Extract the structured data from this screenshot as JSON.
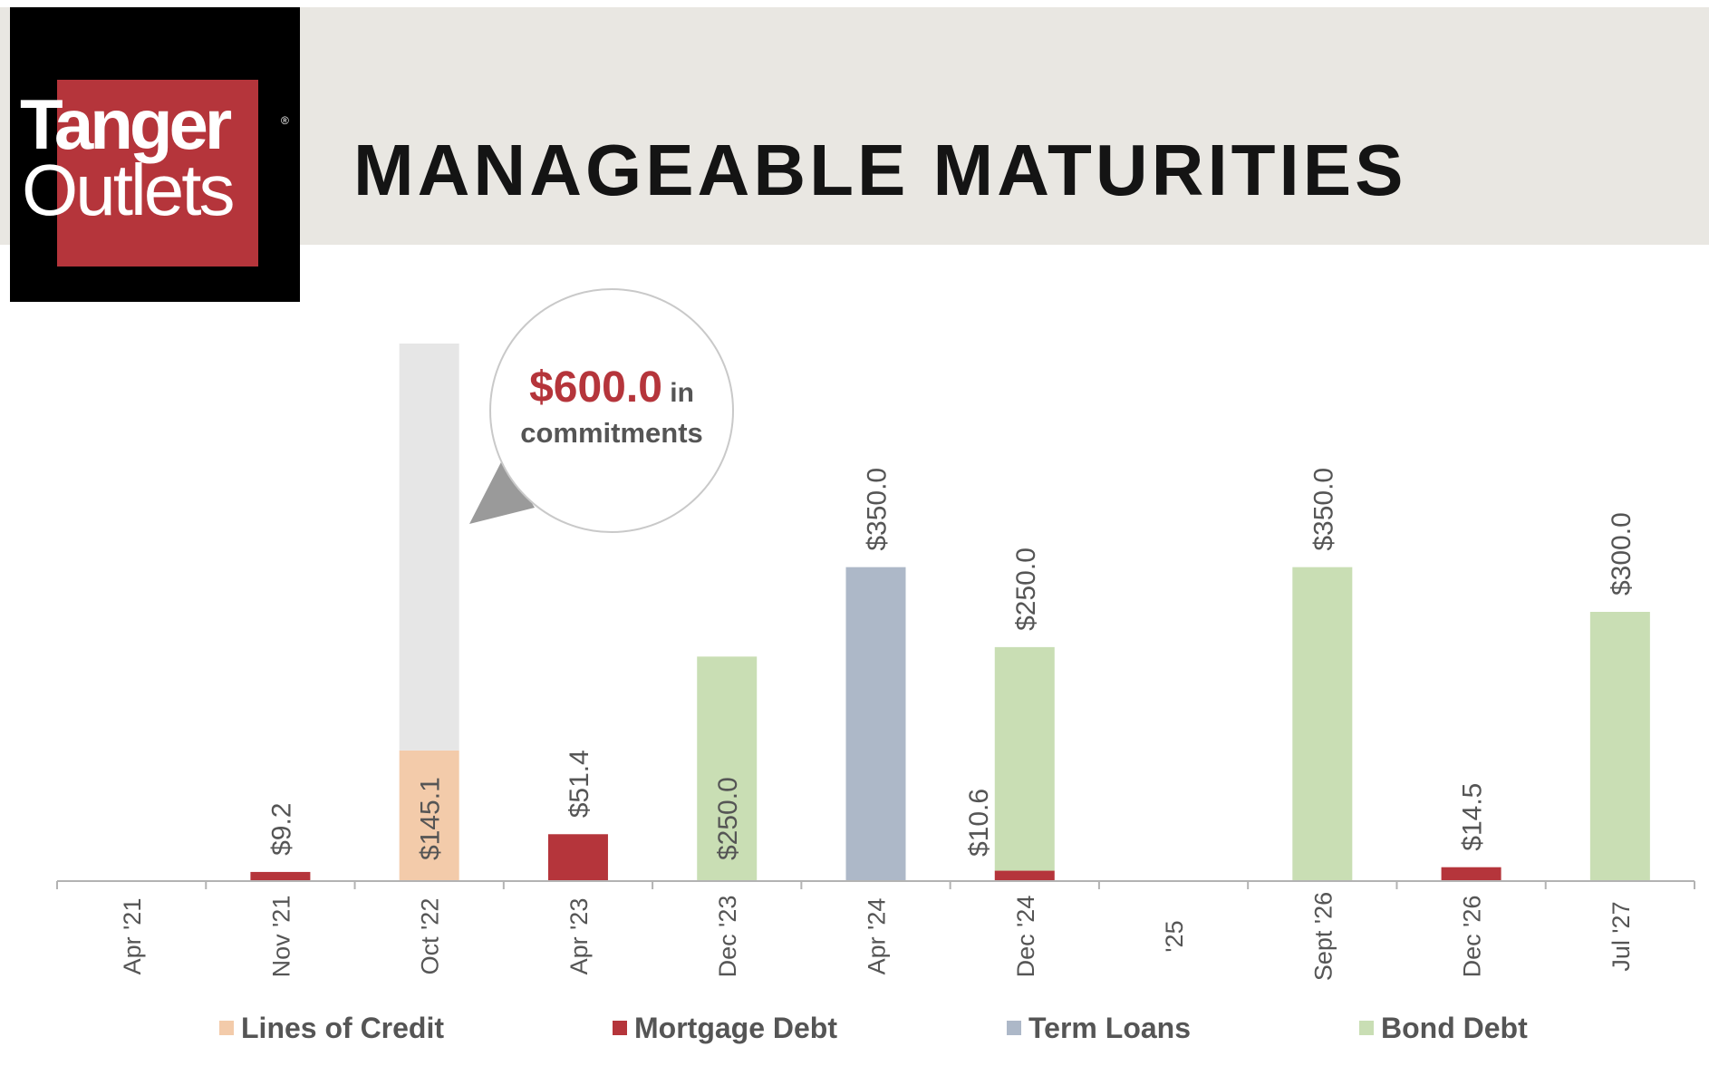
{
  "header": {
    "logo_text_top": "Tanger",
    "logo_text_bottom": "Outlets",
    "logo_registered": "®",
    "title": "MANAGEABLE MATURITIES"
  },
  "callout": {
    "amount": "$600.0",
    "line1_suffix": " in",
    "line2": "commitments"
  },
  "colors": {
    "lines_of_credit": "#f3cbaa",
    "mortgage_debt": "#b5353b",
    "term_loans": "#adb8c8",
    "bond_debt": "#c9deb4",
    "commitments": "#e6e6e6",
    "label": "#555555",
    "axis": "#b3b3b3"
  },
  "chart_data": {
    "type": "bar",
    "stacked": true,
    "categories": [
      "Apr '21",
      "Nov '21",
      "Oct '22",
      "Apr '23",
      "Dec '23",
      "Apr '24",
      "Dec '24",
      "'25",
      "Sept '26",
      "Dec '26",
      "Jul '27"
    ],
    "series": [
      {
        "name": "Lines of Credit",
        "values": [
          0,
          0,
          145.1,
          0,
          0,
          0,
          0,
          0,
          0,
          0,
          0
        ]
      },
      {
        "name": "Mortgage Debt",
        "values": [
          0,
          9.2,
          0,
          51.4,
          0,
          0,
          10.6,
          0,
          0,
          14.5,
          0
        ]
      },
      {
        "name": "Term Loans",
        "values": [
          0,
          0,
          0,
          0,
          0,
          350.0,
          0,
          0,
          0,
          0,
          0
        ]
      },
      {
        "name": "Bond Debt",
        "values": [
          0,
          0,
          0,
          0,
          250.0,
          0,
          250.0,
          0,
          350.0,
          0,
          300.0
        ]
      }
    ],
    "unused_commitments": [
      0,
      0,
      454.9,
      0,
      0,
      0,
      0,
      0,
      0,
      0,
      0
    ],
    "data_labels": [
      {
        "category": "Nov '21",
        "text": "$9.2"
      },
      {
        "category": "Oct '22",
        "text": "$145.1"
      },
      {
        "category": "Apr '23",
        "text": "$51.4"
      },
      {
        "category": "Dec '23",
        "text": "$250.0"
      },
      {
        "category": "Apr '24",
        "text": "$350.0"
      },
      {
        "category": "Dec '24",
        "text": "$10.6"
      },
      {
        "category": "Dec '24",
        "text": "$250.0"
      },
      {
        "category": "Sept '26",
        "text": "$350.0"
      },
      {
        "category": "Dec '26",
        "text": "$14.5"
      },
      {
        "category": "Jul '27",
        "text": "$300.0"
      }
    ],
    "legend": [
      "Lines of Credit",
      "Mortgage Debt",
      "Term Loans",
      "Bond Debt"
    ],
    "legend_position": "bottom",
    "ylim": [
      0,
      600
    ],
    "grid": false,
    "title": "",
    "xlabel": "",
    "ylabel": ""
  }
}
